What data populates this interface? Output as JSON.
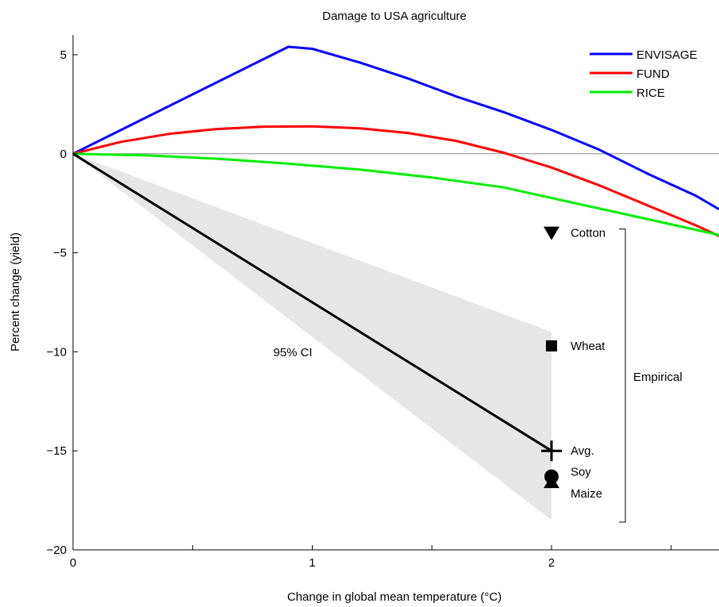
{
  "chart_data": {
    "type": "line",
    "title": "Damage to USA agriculture",
    "xlabel": "Change in global mean temperature (°C)",
    "ylabel": "Percent change (yield)",
    "xlim": [
      0,
      2.7
    ],
    "ylim": [
      -20,
      6
    ],
    "xticks": [
      0,
      1,
      2
    ],
    "yticks": [
      5,
      0,
      -5,
      -10,
      -15,
      -20
    ],
    "xticks_minor": [
      0.5,
      1.5,
      2.5
    ],
    "zero_line": true,
    "legend_position": "top-right",
    "series": [
      {
        "name": "ENVISAGE",
        "color": "#0000ff",
        "x": [
          0,
          0.9,
          1.0,
          1.2,
          1.4,
          1.6,
          1.8,
          2.0,
          2.2,
          2.4,
          2.6,
          2.7
        ],
        "y": [
          0,
          5.4,
          5.3,
          4.6,
          3.8,
          2.9,
          2.1,
          1.2,
          0.2,
          -1.0,
          -2.1,
          -2.8
        ]
      },
      {
        "name": "FUND",
        "color": "#ff0000",
        "x": [
          0,
          0.2,
          0.4,
          0.6,
          0.8,
          1.0,
          1.2,
          1.4,
          1.6,
          1.8,
          2.0,
          2.2,
          2.4,
          2.6,
          2.7
        ],
        "y": [
          0,
          0.6,
          1.0,
          1.25,
          1.37,
          1.38,
          1.28,
          1.05,
          0.65,
          0.05,
          -0.7,
          -1.6,
          -2.6,
          -3.6,
          -4.15
        ]
      },
      {
        "name": "RICE",
        "color": "#00ee00",
        "x": [
          0,
          0.3,
          0.6,
          0.9,
          1.2,
          1.5,
          1.8,
          2.1,
          2.4,
          2.7
        ],
        "y": [
          0,
          -0.08,
          -0.25,
          -0.5,
          -0.8,
          -1.2,
          -1.7,
          -2.5,
          -3.3,
          -4.1
        ]
      },
      {
        "name": "",
        "color": "#000000",
        "x": [
          0,
          2.0
        ],
        "y": [
          0,
          -15.0
        ]
      }
    ],
    "confidence_band": {
      "label": "95% CI",
      "x": [
        0,
        2.0
      ],
      "upper": [
        0,
        -9.0
      ],
      "lower": [
        0,
        -18.5
      ],
      "color": "#e6e6e6"
    },
    "empirical_points": [
      {
        "label": "Cotton",
        "x": 2.0,
        "y": -4.0,
        "marker": "triangle-down"
      },
      {
        "label": "Wheat",
        "x": 2.0,
        "y": -9.7,
        "marker": "square"
      },
      {
        "label": "Avg.",
        "x": 2.0,
        "y": -15.0,
        "marker": "plus"
      },
      {
        "label": "Soy",
        "x": 2.0,
        "y": -16.3,
        "marker": "circle"
      },
      {
        "label": "Maize",
        "x": 2.0,
        "y": -16.6,
        "marker": "triangle-up"
      }
    ],
    "empirical_bracket": {
      "label": "Empirical",
      "y_top": -3.8,
      "y_bottom": -18.6
    }
  }
}
